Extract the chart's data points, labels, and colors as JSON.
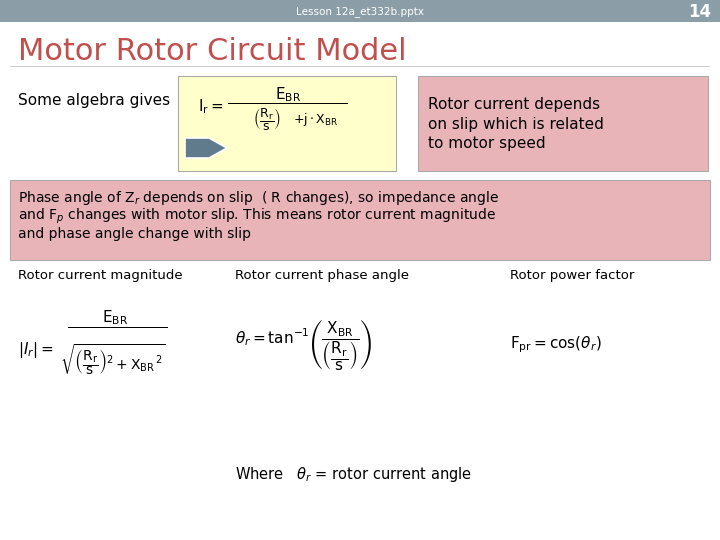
{
  "title": "Motor Rotor Circuit Model",
  "header_text": "Lesson 12a_et332b.pptx",
  "page_number": "14",
  "header_bg": "#8B9EA8",
  "title_color": "#C0504D",
  "background_color": "#FFFFFF",
  "some_algebra_text": "Some algebra gives",
  "formula_box_bg": "#FFFFCC",
  "rotor_box_bg": "#E8B4B8",
  "rotor_box_text": "Rotor current depends\non slip which is related\nto motor speed",
  "phase_box_bg": "#E8B4B8",
  "phase_text_line1": "Phase angle of Z",
  "phase_text_line2": " depends on slip  ( R changes), so impedance angle",
  "phase_text_line3": "and F",
  "phase_text_line4": " changes with motor slip. This means rotor current magnitude",
  "phase_text_line5": "and phase angle change with slip",
  "label1": "Rotor current magnitude",
  "label2": "Rotor current phase angle",
  "label3": "Rotor power factor",
  "where_text": "Where   $\\theta_r$ = rotor current angle",
  "arrow_color": "#607B8B"
}
